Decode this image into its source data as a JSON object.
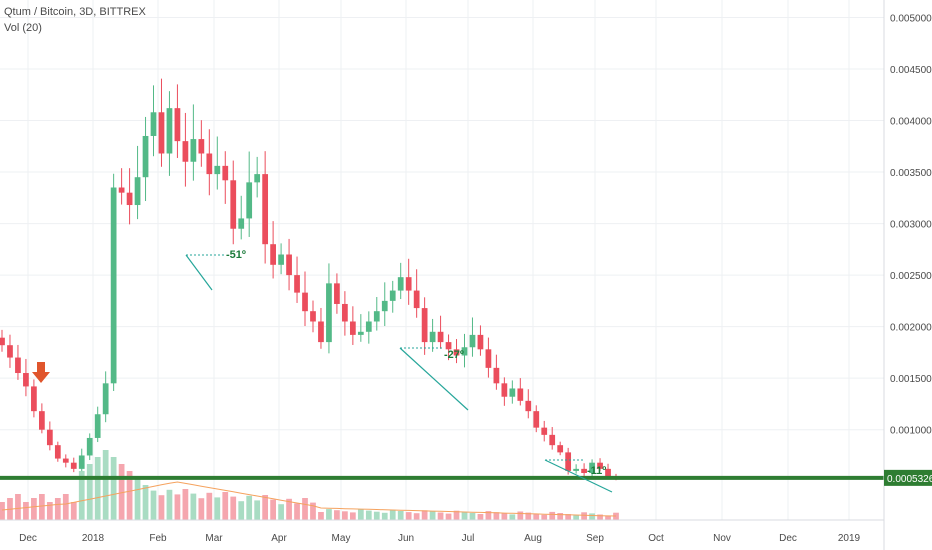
{
  "header": {
    "symbol_line": "Qtum / Bitcoin, 3D, BITTREX",
    "indicator_line": "Vol (20)"
  },
  "colors": {
    "up": "#53b987",
    "down": "#eb4d5c",
    "up_vol": "#a9dcc3",
    "down_vol": "#f5a6ae",
    "ma": "#f5a25e",
    "support": "#2e7d32",
    "price_tag_bg": "#2e7d32",
    "arrow": "#e0552c",
    "grid": "#eef0f3",
    "axis_text": "#4a4a4a"
  },
  "chart_data": {
    "type": "candlestick",
    "xaxis_ticks": [
      "Dec",
      "2018",
      "Feb",
      "Mar",
      "Apr",
      "May",
      "Jun",
      "Jul",
      "Aug",
      "Sep",
      "Oct",
      "Nov",
      "Dec",
      "2019"
    ],
    "yaxis_ticks": [
      "0.00500000",
      "0.00450000",
      "0.00400000",
      "0.00350000",
      "0.00300000",
      "0.00250000",
      "0.00200000",
      "0.00150000",
      "0.00100000"
    ],
    "ylim": [
      0.00025,
      0.00515
    ],
    "support_level": 0.00053268,
    "current_price_label": "0.00053268",
    "annotations": [
      {
        "label": "-51º",
        "near": "Mar"
      },
      {
        "label": "-27º",
        "near": "Jun"
      },
      {
        "label": "-11º",
        "near": "Sep"
      }
    ],
    "price_series": [
      0.00182,
      0.0017,
      0.00155,
      0.00142,
      0.00118,
      0.001,
      0.00085,
      0.00072,
      0.00068,
      0.00062,
      0.00075,
      0.00092,
      0.00115,
      0.00145,
      0.00335,
      0.0033,
      0.00318,
      0.00345,
      0.00385,
      0.00408,
      0.00368,
      0.00412,
      0.0038,
      0.0036,
      0.00382,
      0.00368,
      0.00348,
      0.00356,
      0.00342,
      0.00295,
      0.00305,
      0.0034,
      0.00348,
      0.0028,
      0.0026,
      0.0027,
      0.0025,
      0.00233,
      0.00215,
      0.00205,
      0.00185,
      0.00242,
      0.00222,
      0.00205,
      0.00192,
      0.00195,
      0.00205,
      0.00215,
      0.00225,
      0.00235,
      0.00248,
      0.00235,
      0.00218,
      0.00185,
      0.00195,
      0.00185,
      0.00178,
      0.00172,
      0.0018,
      0.00192,
      0.00178,
      0.0016,
      0.00145,
      0.00132,
      0.0014,
      0.00128,
      0.00118,
      0.00102,
      0.00095,
      0.00085,
      0.00078,
      0.0006,
      0.00062,
      0.00058,
      0.00068,
      0.00062,
      0.00055,
      0.00053268
    ]
  }
}
